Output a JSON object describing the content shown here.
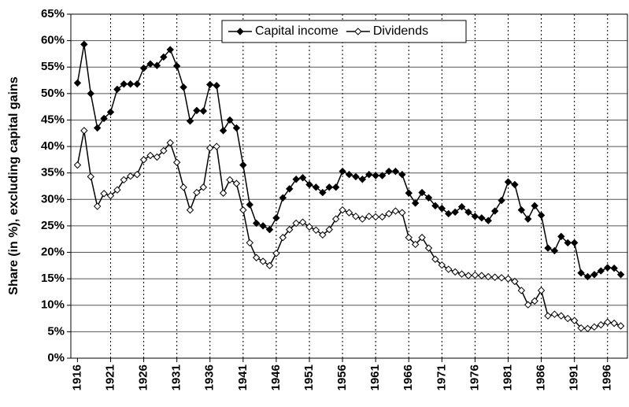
{
  "chart_data": {
    "type": "line",
    "y_label": "Share (in %), excluding capital gains",
    "x": [
      1916,
      1917,
      1918,
      1919,
      1920,
      1921,
      1922,
      1923,
      1924,
      1925,
      1926,
      1927,
      1928,
      1929,
      1930,
      1931,
      1932,
      1933,
      1934,
      1935,
      1936,
      1937,
      1938,
      1939,
      1940,
      1941,
      1942,
      1943,
      1944,
      1945,
      1946,
      1947,
      1948,
      1949,
      1950,
      1951,
      1952,
      1953,
      1954,
      1955,
      1956,
      1957,
      1958,
      1959,
      1960,
      1961,
      1962,
      1963,
      1964,
      1965,
      1966,
      1967,
      1968,
      1969,
      1970,
      1971,
      1972,
      1973,
      1974,
      1975,
      1976,
      1977,
      1978,
      1979,
      1980,
      1981,
      1982,
      1983,
      1984,
      1985,
      1986,
      1987,
      1988,
      1989,
      1990,
      1991,
      1992,
      1993,
      1994,
      1995,
      1996,
      1997,
      1998
    ],
    "series": [
      {
        "name": "Capital income",
        "color": "#000000",
        "marker": "filled",
        "values": [
          52,
          59.3,
          50,
          43.5,
          45.3,
          46.5,
          50.8,
          51.8,
          51.8,
          51.8,
          54.8,
          55.6,
          55.3,
          56.9,
          58.3,
          55.2,
          51.2,
          44.8,
          46.8,
          46.7,
          51.7,
          51.5,
          43,
          45,
          43.5,
          36.5,
          29,
          25.5,
          25,
          24.3,
          26.5,
          30.3,
          32,
          33.8,
          34.1,
          32.8,
          32.3,
          31.3,
          32.3,
          32.3,
          35.3,
          34.7,
          34.3,
          33.8,
          34.7,
          34.5,
          34.5,
          35.3,
          35.3,
          34.7,
          31.2,
          29.3,
          31.3,
          30.3,
          28.8,
          28.3,
          27.3,
          27.6,
          28.6,
          27.6,
          26.8,
          26.5,
          26,
          27.8,
          29.8,
          33.3,
          32.8,
          28,
          26.3,
          28.8,
          27,
          20.8,
          20.3,
          23,
          21.8,
          21.8,
          16.1,
          15.4,
          15.8,
          16.5,
          17.1,
          17,
          15.8
        ]
      },
      {
        "name": "Dividends",
        "color": "#000000",
        "marker": "open",
        "values": [
          36.5,
          43,
          34.3,
          28.7,
          31.1,
          30.7,
          31.8,
          33.7,
          34.4,
          34.7,
          37.5,
          38.3,
          38,
          39.2,
          40.7,
          37,
          32.3,
          28,
          31.3,
          32.3,
          39.7,
          40,
          31.2,
          33.7,
          33,
          28,
          21.8,
          19,
          18.3,
          17.5,
          19.8,
          22.8,
          24.3,
          25.5,
          25.7,
          24.8,
          24.2,
          23.3,
          24.3,
          26.3,
          28,
          27.5,
          26.8,
          26.3,
          26.8,
          26.7,
          26.7,
          27.3,
          27.8,
          27.5,
          22.8,
          21.5,
          22.8,
          20.8,
          18.7,
          17.6,
          16.8,
          16.3,
          15.9,
          15.6,
          15.7,
          15.6,
          15.4,
          15.3,
          15.2,
          15,
          14.5,
          12.8,
          10.1,
          10.8,
          12.8,
          8,
          8.3,
          8,
          7.5,
          7.1,
          5.7,
          5.6,
          5.9,
          6.3,
          6.8,
          6.6,
          6.1
        ]
      }
    ],
    "xlim": [
      1915,
      1999
    ],
    "xticks": [
      1916,
      1921,
      1926,
      1931,
      1936,
      1941,
      1946,
      1951,
      1956,
      1961,
      1966,
      1971,
      1976,
      1981,
      1986,
      1991,
      1996
    ],
    "ylim": [
      0,
      65
    ],
    "yticks": [
      {
        "value": 0,
        "label": "0%"
      },
      {
        "value": 5,
        "label": "5%"
      },
      {
        "value": 10,
        "label": "10%"
      },
      {
        "value": 15,
        "label": "15%"
      },
      {
        "value": 20,
        "label": "20%"
      },
      {
        "value": 25,
        "label": "25%"
      },
      {
        "value": 30,
        "label": "30%"
      },
      {
        "value": 35,
        "label": "35%"
      },
      {
        "value": 40,
        "label": "40%"
      },
      {
        "value": 45,
        "label": "45%"
      },
      {
        "value": 50,
        "label": "50%"
      },
      {
        "value": 55,
        "label": "55%"
      },
      {
        "value": 60,
        "label": "60%"
      },
      {
        "value": 65,
        "label": "65%"
      }
    ],
    "grid": true,
    "legend": "top"
  }
}
